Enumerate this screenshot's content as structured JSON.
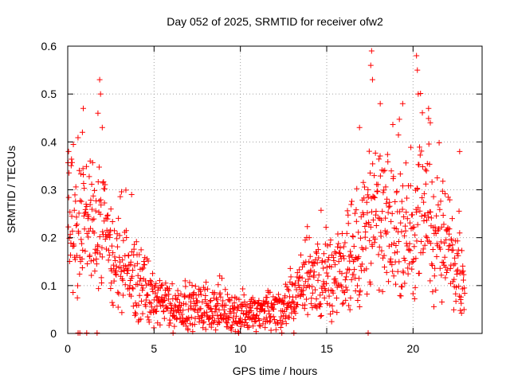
{
  "chart_data": {
    "type": "scatter",
    "title": "Day 052 of 2025, SRMTID for receiver ofw2",
    "xlabel": "GPS time / hours",
    "ylabel": "SRMTID / TECUs",
    "xlim": [
      0,
      24
    ],
    "ylim": [
      0,
      0.6
    ],
    "x_ticks": [
      {
        "value": 0,
        "label": "0"
      },
      {
        "value": 5,
        "label": "5"
      },
      {
        "value": 10,
        "label": "10"
      },
      {
        "value": 15,
        "label": "15"
      },
      {
        "value": 20,
        "label": "20"
      }
    ],
    "y_ticks": [
      {
        "value": 0,
        "label": "0"
      },
      {
        "value": 0.1,
        "label": "0.1"
      },
      {
        "value": 0.2,
        "label": "0.2"
      },
      {
        "value": 0.3,
        "label": "0.3"
      },
      {
        "value": 0.4,
        "label": "0.4"
      },
      {
        "value": 0.5,
        "label": "0.5"
      },
      {
        "value": 0.6,
        "label": "0.6"
      }
    ],
    "grid": true,
    "marker": "plus",
    "marker_color": "#ff0000",
    "trend": [
      [
        0.0,
        0.27
      ],
      [
        0.5,
        0.22
      ],
      [
        1.0,
        0.22
      ],
      [
        1.5,
        0.24
      ],
      [
        2.0,
        0.22
      ],
      [
        2.5,
        0.17
      ],
      [
        3.0,
        0.14
      ],
      [
        3.5,
        0.12
      ],
      [
        4.0,
        0.11
      ],
      [
        4.5,
        0.09
      ],
      [
        5.0,
        0.07
      ],
      [
        6.0,
        0.055
      ],
      [
        7.0,
        0.055
      ],
      [
        8.0,
        0.055
      ],
      [
        9.0,
        0.05
      ],
      [
        10.0,
        0.04
      ],
      [
        11.0,
        0.04
      ],
      [
        12.0,
        0.05
      ],
      [
        13.0,
        0.06
      ],
      [
        13.5,
        0.1
      ],
      [
        14.0,
        0.12
      ],
      [
        15.0,
        0.11
      ],
      [
        16.0,
        0.13
      ],
      [
        16.5,
        0.16
      ],
      [
        17.0,
        0.19
      ],
      [
        17.5,
        0.23
      ],
      [
        18.0,
        0.24
      ],
      [
        18.5,
        0.22
      ],
      [
        19.0,
        0.21
      ],
      [
        19.5,
        0.21
      ],
      [
        20.0,
        0.22
      ],
      [
        20.5,
        0.25
      ],
      [
        21.0,
        0.23
      ],
      [
        21.5,
        0.2
      ],
      [
        22.0,
        0.18
      ],
      [
        22.5,
        0.15
      ],
      [
        23.0,
        0.14
      ]
    ],
    "spikes": [
      [
        0.9,
        0.47
      ],
      [
        0.85,
        0.42
      ],
      [
        1.85,
        0.53
      ],
      [
        1.9,
        0.5
      ],
      [
        2.0,
        0.43
      ],
      [
        1.75,
        0.46
      ],
      [
        1.3,
        0.36
      ],
      [
        3.7,
        0.29
      ],
      [
        17.6,
        0.59
      ],
      [
        17.55,
        0.56
      ],
      [
        17.65,
        0.53
      ],
      [
        18.1,
        0.48
      ],
      [
        19.4,
        0.48
      ],
      [
        20.2,
        0.58
      ],
      [
        20.25,
        0.55
      ],
      [
        20.3,
        0.5
      ],
      [
        20.9,
        0.47
      ],
      [
        21.0,
        0.44
      ],
      [
        16.9,
        0.43
      ],
      [
        22.7,
        0.38
      ],
      [
        0.05,
        0.38
      ],
      [
        2.5,
        0.26
      ],
      [
        8.8,
        0.12
      ],
      [
        6.8,
        0.11
      ]
    ],
    "baseline_x": [
      0.6,
      0.7,
      1.1,
      1.7,
      6.1,
      9.9,
      12.4,
      13.1,
      17.4
    ]
  }
}
